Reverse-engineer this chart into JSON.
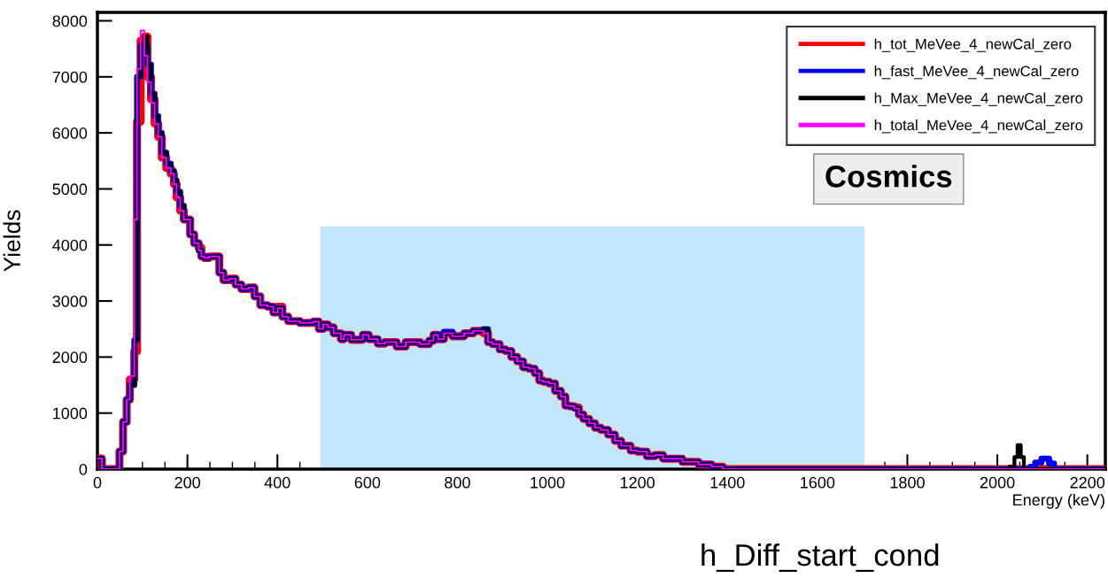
{
  "chart_data": {
    "type": "step",
    "xlabel": "Energy (keV)",
    "ylabel": "Yields",
    "annotations": [
      "Cosmics",
      "h_Diff_start_cond"
    ],
    "xlim": [
      0,
      2240
    ],
    "xticks": [
      0,
      200,
      400,
      600,
      800,
      1000,
      1200,
      1400,
      1600,
      1800,
      2000,
      2200
    ],
    "ylim": [
      0,
      8150
    ],
    "yticks": [
      0,
      1000,
      2000,
      3000,
      4000,
      5000,
      6000,
      7000,
      8000
    ],
    "grid": false,
    "legend": "top right",
    "x": [
      0,
      10,
      49,
      57,
      65,
      72,
      82,
      88,
      96,
      104,
      111,
      119,
      127,
      135,
      143,
      153,
      163,
      170,
      176,
      184,
      192,
      206,
      215,
      225,
      231,
      238,
      248,
      271,
      280,
      294,
      307,
      320,
      336,
      349,
      362,
      378,
      391,
      401,
      411,
      424,
      450,
      480,
      492,
      502,
      512,
      525,
      541,
      548,
      564,
      590,
      603,
      623,
      639,
      665,
      685,
      717,
      737,
      747,
      757,
      770,
      789,
      815,
      835,
      858,
      868,
      878,
      894,
      907,
      920,
      933,
      946,
      959,
      972,
      982,
      991,
      1004,
      1017,
      1030,
      1040,
      1050,
      1060,
      1070,
      1080,
      1093,
      1106,
      1119,
      1135,
      1150,
      1164,
      1185,
      1200,
      1221,
      1239,
      1257,
      1300,
      1336,
      1365,
      1390,
      2027,
      2038,
      2045,
      2052,
      2059,
      2073,
      2084,
      2098,
      2115,
      2126,
      2240
    ],
    "series": [
      {
        "type": "area",
        "color": "#c2e6fb",
        "x": [
          495,
          1705
        ],
        "values": [
          4330,
          4330
        ]
      },
      {
        "name": "h_tot_MeVee_4_newCal_zero",
        "color": "#ff0000",
        "values": [
          190,
          0,
          316,
          843,
          1238,
          1600,
          2100,
          6200,
          7650,
          7720,
          7000,
          6600,
          6166,
          5929,
          5560,
          5375,
          5270,
          5086,
          4849,
          4612,
          4454,
          4190,
          4032,
          3950,
          3794,
          3768,
          3794,
          3505,
          3373,
          3400,
          3294,
          3215,
          3240,
          3083,
          2925,
          2900,
          2794,
          2900,
          2720,
          2640,
          2609,
          2635,
          2504,
          2582,
          2530,
          2424,
          2319,
          2398,
          2308,
          2398,
          2319,
          2240,
          2266,
          2188,
          2266,
          2230,
          2292,
          2398,
          2319,
          2424,
          2371,
          2424,
          2466,
          2424,
          2266,
          2230,
          2135,
          2108,
          2003,
          1924,
          1818,
          1792,
          1712,
          1581,
          1560,
          1529,
          1396,
          1296,
          1134,
          1120,
          1100,
          975,
          896,
          817,
          738,
          700,
          617,
          506,
          417,
          332,
          313,
          232,
          253,
          187,
          130,
          84,
          43,
          0,
          0,
          0,
          0,
          0,
          0,
          0,
          0,
          0,
          0,
          0,
          0
        ]
      },
      {
        "name": "h_fast_MeVee_4_newCal_zero",
        "color": "#0000ff",
        "values": [
          190,
          0,
          316,
          843,
          1238,
          1500,
          2300,
          7000,
          7560,
          7550,
          7220,
          6700,
          6300,
          6000,
          5650,
          5450,
          5320,
          5150,
          4950,
          4700,
          4454,
          4190,
          4032,
          3900,
          3794,
          3768,
          3794,
          3505,
          3373,
          3400,
          3294,
          3215,
          3240,
          3083,
          2925,
          2900,
          2794,
          2873,
          2720,
          2640,
          2609,
          2635,
          2504,
          2582,
          2530,
          2424,
          2319,
          2398,
          2308,
          2398,
          2319,
          2240,
          2266,
          2188,
          2266,
          2230,
          2292,
          2398,
          2319,
          2450,
          2371,
          2424,
          2466,
          2500,
          2266,
          2230,
          2135,
          2108,
          2003,
          1924,
          1818,
          1792,
          1712,
          1581,
          1560,
          1529,
          1396,
          1296,
          1134,
          1120,
          1080,
          975,
          896,
          817,
          738,
          700,
          617,
          506,
          417,
          332,
          313,
          232,
          253,
          187,
          130,
          84,
          43,
          0,
          0,
          0,
          0,
          0,
          0,
          43,
          119,
          187,
          100,
          0,
          0
        ]
      },
      {
        "name": "h_Max_MeVee_4_newCal_zero",
        "color": "#000000",
        "values": [
          190,
          0,
          316,
          843,
          1238,
          1500,
          2300,
          7000,
          7560,
          7720,
          7220,
          6700,
          6300,
          6000,
          5650,
          5450,
          5320,
          5150,
          4950,
          4700,
          4454,
          4190,
          4032,
          3900,
          3794,
          3768,
          3794,
          3505,
          3373,
          3400,
          3294,
          3215,
          3240,
          3083,
          2925,
          2900,
          2794,
          2873,
          2720,
          2640,
          2609,
          2635,
          2504,
          2582,
          2530,
          2424,
          2319,
          2398,
          2308,
          2398,
          2319,
          2240,
          2266,
          2188,
          2266,
          2230,
          2292,
          2398,
          2319,
          2424,
          2371,
          2424,
          2466,
          2500,
          2266,
          2230,
          2135,
          2108,
          2003,
          1924,
          1818,
          1792,
          1712,
          1581,
          1560,
          1529,
          1396,
          1296,
          1134,
          1120,
          1080,
          975,
          896,
          817,
          738,
          700,
          617,
          506,
          417,
          332,
          313,
          232,
          253,
          187,
          130,
          84,
          43,
          0,
          43,
          215,
          428,
          215,
          0,
          0,
          0,
          0,
          0,
          0,
          0
        ]
      },
      {
        "name": "h_total_MeVee_4_newCal_zero",
        "color": "#ff00ff",
        "values": [
          190,
          0,
          316,
          843,
          1238,
          1660,
          4454,
          7141,
          7826,
          7378,
          6904,
          6535,
          6166,
          5929,
          5560,
          5375,
          5270,
          5086,
          4849,
          4612,
          4454,
          4190,
          4032,
          3900,
          3794,
          3768,
          3794,
          3505,
          3373,
          3400,
          3294,
          3215,
          3240,
          3083,
          2925,
          2900,
          2794,
          2873,
          2720,
          2640,
          2609,
          2635,
          2504,
          2582,
          2530,
          2424,
          2319,
          2398,
          2308,
          2398,
          2319,
          2240,
          2266,
          2188,
          2266,
          2230,
          2292,
          2398,
          2319,
          2424,
          2371,
          2424,
          2466,
          2424,
          2266,
          2230,
          2135,
          2108,
          2003,
          1924,
          1818,
          1792,
          1712,
          1581,
          1560,
          1529,
          1396,
          1296,
          1134,
          1120,
          1080,
          975,
          896,
          817,
          738,
          700,
          617,
          506,
          417,
          332,
          313,
          232,
          253,
          187,
          130,
          84,
          43,
          0,
          0,
          0,
          0,
          0,
          0,
          0,
          0,
          0,
          0,
          0,
          0
        ]
      }
    ]
  }
}
